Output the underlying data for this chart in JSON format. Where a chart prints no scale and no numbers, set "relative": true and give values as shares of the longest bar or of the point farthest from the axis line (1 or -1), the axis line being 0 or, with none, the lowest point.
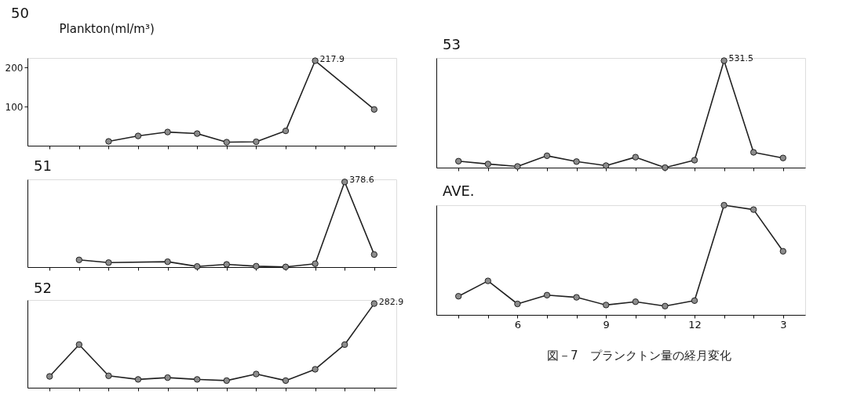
{
  "chart_data": [
    {
      "type": "line",
      "title": "50",
      "ylabel": "Plankton(ml/m³)",
      "categories": [
        null,
        null,
        null,
        null,
        null,
        null,
        null,
        null,
        null,
        null,
        null,
        null
      ],
      "series": [
        {
          "color": "#222222",
          "values": [
            null,
            null,
            11,
            25,
            35,
            31,
            9,
            10,
            38,
            217.9,
            null,
            93
          ],
          "value_labels": [
            null,
            null,
            null,
            null,
            null,
            null,
            null,
            null,
            null,
            "217.9",
            null,
            null
          ]
        }
      ],
      "ylim": [
        0,
        225
      ],
      "yticks": [
        100,
        200
      ],
      "tick_labels": "y",
      "grid": false,
      "marker": "circle",
      "line_style": "solid"
    },
    {
      "type": "line",
      "title": "51",
      "categories": [
        null,
        null,
        null,
        null,
        null,
        null,
        null,
        null,
        null,
        null,
        null,
        null
      ],
      "series": [
        {
          "color": "#222222",
          "values": [
            null,
            32,
            20,
            null,
            24,
            3,
            12,
            4,
            1,
            15,
            378.6,
            56
          ],
          "value_labels": [
            null,
            null,
            null,
            null,
            null,
            null,
            null,
            null,
            null,
            null,
            "378.6",
            null
          ]
        }
      ],
      "ylim": [
        0,
        390
      ],
      "tick_labels": false,
      "grid": false,
      "marker": "circle",
      "line_style": "solid"
    },
    {
      "type": "line",
      "title": "52",
      "categories": [
        null,
        null,
        null,
        null,
        null,
        null,
        null,
        null,
        null,
        null,
        null,
        null
      ],
      "series": [
        {
          "color": "#222222",
          "values": [
            38,
            145,
            40,
            28,
            34,
            28,
            24,
            46,
            24,
            62,
            145,
            282.9
          ],
          "value_labels": [
            null,
            null,
            null,
            null,
            null,
            null,
            null,
            null,
            null,
            null,
            null,
            "282.9"
          ]
        }
      ],
      "ylim": [
        0,
        295
      ],
      "tick_labels": false,
      "grid": false,
      "marker": "circle",
      "line_style": "solid"
    },
    {
      "type": "line",
      "title": "53",
      "categories": [
        null,
        null,
        null,
        null,
        null,
        null,
        null,
        null,
        null,
        null,
        null,
        null
      ],
      "series": [
        {
          "color": "#222222",
          "values": [
            32,
            18,
            6,
            59,
            30,
            10,
            52,
            0,
            37,
            531.5,
            76,
            48
          ],
          "value_labels": [
            null,
            null,
            null,
            null,
            null,
            null,
            null,
            null,
            null,
            "531.5",
            null,
            null
          ]
        }
      ],
      "ylim": [
        0,
        545
      ],
      "tick_labels": false,
      "grid": false,
      "marker": "circle",
      "line_style": "solid"
    },
    {
      "type": "line",
      "title": "AVE.",
      "relative": true,
      "categories": [
        null,
        null,
        "6",
        null,
        null,
        "9",
        null,
        null,
        "12",
        null,
        null,
        "3"
      ],
      "series": [
        {
          "color": "#222222",
          "values": [
            0.17,
            0.31,
            0.1,
            0.18,
            0.16,
            0.09,
            0.12,
            0.08,
            0.13,
            1,
            0.96,
            0.58
          ]
        }
      ],
      "tick_labels": "x",
      "grid": false,
      "marker": "circle",
      "line_style": "solid",
      "annotations": [
        "図－7　プランクトン量の経月変化"
      ]
    }
  ]
}
